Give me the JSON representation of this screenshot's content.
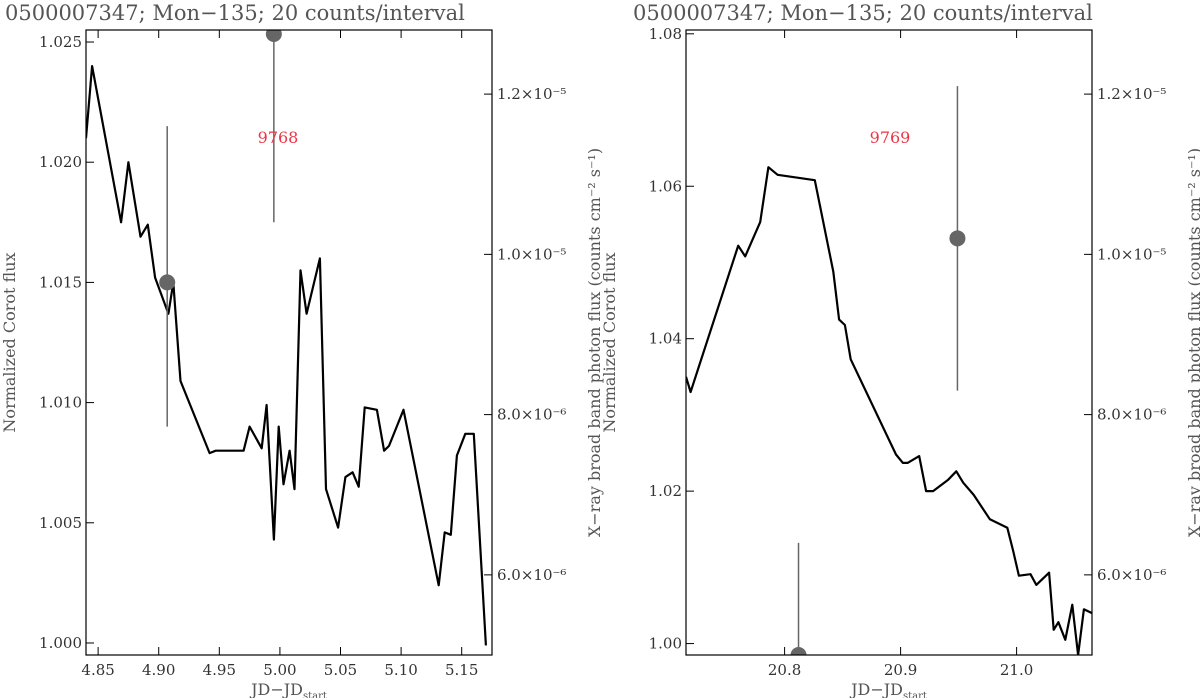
{
  "chart_data": [
    {
      "type": "line",
      "title": "0500007347; Mon−135; 20 counts/interval",
      "xlabel": "JD−JD",
      "xlabel_sub": "start",
      "ylabel": "Normalized Corot flux",
      "y2label": "X−ray broad band photon flux (counts cm⁻² s⁻¹)",
      "xlim": [
        4.84,
        5.175
      ],
      "ylim": [
        0.9995,
        1.0255
      ],
      "y2lim": [
        5e-06,
        1.28e-05
      ],
      "x_ticks": [
        "4.85",
        "4.90",
        "4.95",
        "5.00",
        "5.05",
        "5.10",
        "5.15"
      ],
      "x_tick_values": [
        4.85,
        4.9,
        4.95,
        5.0,
        5.05,
        5.1,
        5.15
      ],
      "y_ticks": [
        "1.000",
        "1.005",
        "1.010",
        "1.015",
        "1.020",
        "1.025"
      ],
      "y_tick_values": [
        1.0,
        1.005,
        1.01,
        1.015,
        1.02,
        1.025
      ],
      "y2_ticks": [
        "6.0×10⁻⁶",
        "8.0×10⁻⁶",
        "1.0×10⁻⁵",
        "1.2×10⁻⁵"
      ],
      "y2_tick_values": [
        6e-06,
        8e-06,
        1e-05,
        1.2e-05
      ],
      "grid": false,
      "annotation": "9768",
      "series": [
        {
          "color": "#000000",
          "x": [
            4.84,
            4.845,
            4.869,
            4.875,
            4.885,
            4.891,
            4.897,
            4.908,
            4.912,
            4.918,
            4.942,
            4.947,
            4.97,
            4.975,
            4.985,
            4.989,
            4.995,
            4.999,
            5.003,
            5.008,
            5.012,
            5.017,
            5.022,
            5.033,
            5.038,
            5.048,
            5.054,
            5.06,
            5.065,
            5.07,
            5.08,
            5.086,
            5.09,
            5.102,
            5.131,
            5.136,
            5.141,
            5.146,
            5.153,
            5.16,
            5.17
          ],
          "y": [
            1.021,
            1.024,
            1.0175,
            1.02,
            1.0169,
            1.0174,
            1.0152,
            1.0137,
            1.015,
            1.0109,
            1.0079,
            1.008,
            1.008,
            1.009,
            1.0081,
            1.0099,
            1.0043,
            1.009,
            1.0066,
            1.008,
            1.0064,
            1.0155,
            1.0137,
            1.016,
            1.0064,
            1.0048,
            1.0069,
            1.0071,
            1.0065,
            1.0098,
            1.0097,
            1.008,
            1.0082,
            1.0097,
            1.0024,
            1.0046,
            1.0045,
            1.0078,
            1.0087,
            1.0087,
            0.9999
          ]
        },
        {
          "color": "#666666",
          "kind": "xray-points",
          "x": [
            4.907,
            4.995
          ],
          "y": [
            9.65e-06,
            1.275e-05
          ],
          "yerr_low": [
            7.85e-06,
            1.04e-05
          ],
          "yerr_high": [
            1.16e-05,
            1.3e-05
          ]
        }
      ]
    },
    {
      "type": "line",
      "title": "0500007347; Mon−135; 20 counts/interval",
      "xlabel": "JD−JD",
      "xlabel_sub": "start",
      "ylabel": "Normalized Corot flux",
      "y2label": "X−ray broad band photon flux (counts cm⁻² s⁻¹)",
      "xlim": [
        20.715,
        21.065
      ],
      "ylim": [
        0.9985,
        1.0805
      ],
      "y2lim": [
        5e-06,
        1.28e-05
      ],
      "x_ticks": [
        "20.8",
        "20.9",
        "21.0"
      ],
      "x_tick_values": [
        20.8,
        20.9,
        21.0
      ],
      "y_ticks": [
        "1.00",
        "1.02",
        "1.04",
        "1.06",
        "1.08"
      ],
      "y_tick_values": [
        1.0,
        1.02,
        1.04,
        1.06,
        1.08
      ],
      "y2_ticks": [
        "6.0×10⁻⁶",
        "8.0×10⁻⁶",
        "1.0×10⁻⁵",
        "1.2×10⁻⁵"
      ],
      "y2_tick_values": [
        6e-06,
        8e-06,
        1e-05,
        1.2e-05
      ],
      "grid": false,
      "annotation": "9769",
      "series": [
        {
          "color": "#000000",
          "x": [
            20.715,
            20.719,
            20.76,
            20.766,
            20.779,
            20.786,
            20.794,
            20.826,
            20.842,
            20.847,
            20.852,
            20.857,
            20.896,
            20.902,
            20.906,
            20.916,
            20.922,
            20.928,
            20.941,
            20.948,
            20.954,
            20.963,
            20.977,
            20.992,
            20.997,
            21.002,
            21.012,
            21.017,
            21.028,
            21.032,
            21.036,
            21.042,
            21.048,
            21.053,
            21.058,
            21.065
          ],
          "y": [
            1.035,
            1.033,
            1.0522,
            1.0508,
            1.0553,
            1.0625,
            1.0615,
            1.0608,
            1.0488,
            1.0425,
            1.0418,
            1.0373,
            1.0248,
            1.0237,
            1.0237,
            1.0246,
            1.02,
            1.02,
            1.0215,
            1.0226,
            1.0211,
            1.0195,
            1.0163,
            1.0152,
            1.0122,
            1.0089,
            1.0091,
            1.0077,
            1.0093,
            1.0018,
            1.0028,
            1.0005,
            1.0051,
            0.9985,
            1.0045,
            1.004
          ]
        },
        {
          "color": "#666666",
          "kind": "xray-points",
          "x": [
            20.812,
            20.949
          ],
          "y": [
            5e-06,
            1.02e-05
          ],
          "yerr_low": [
            5e-06,
            8.3e-06
          ],
          "yerr_high": [
            6.4e-06,
            1.21e-05
          ]
        }
      ]
    }
  ]
}
